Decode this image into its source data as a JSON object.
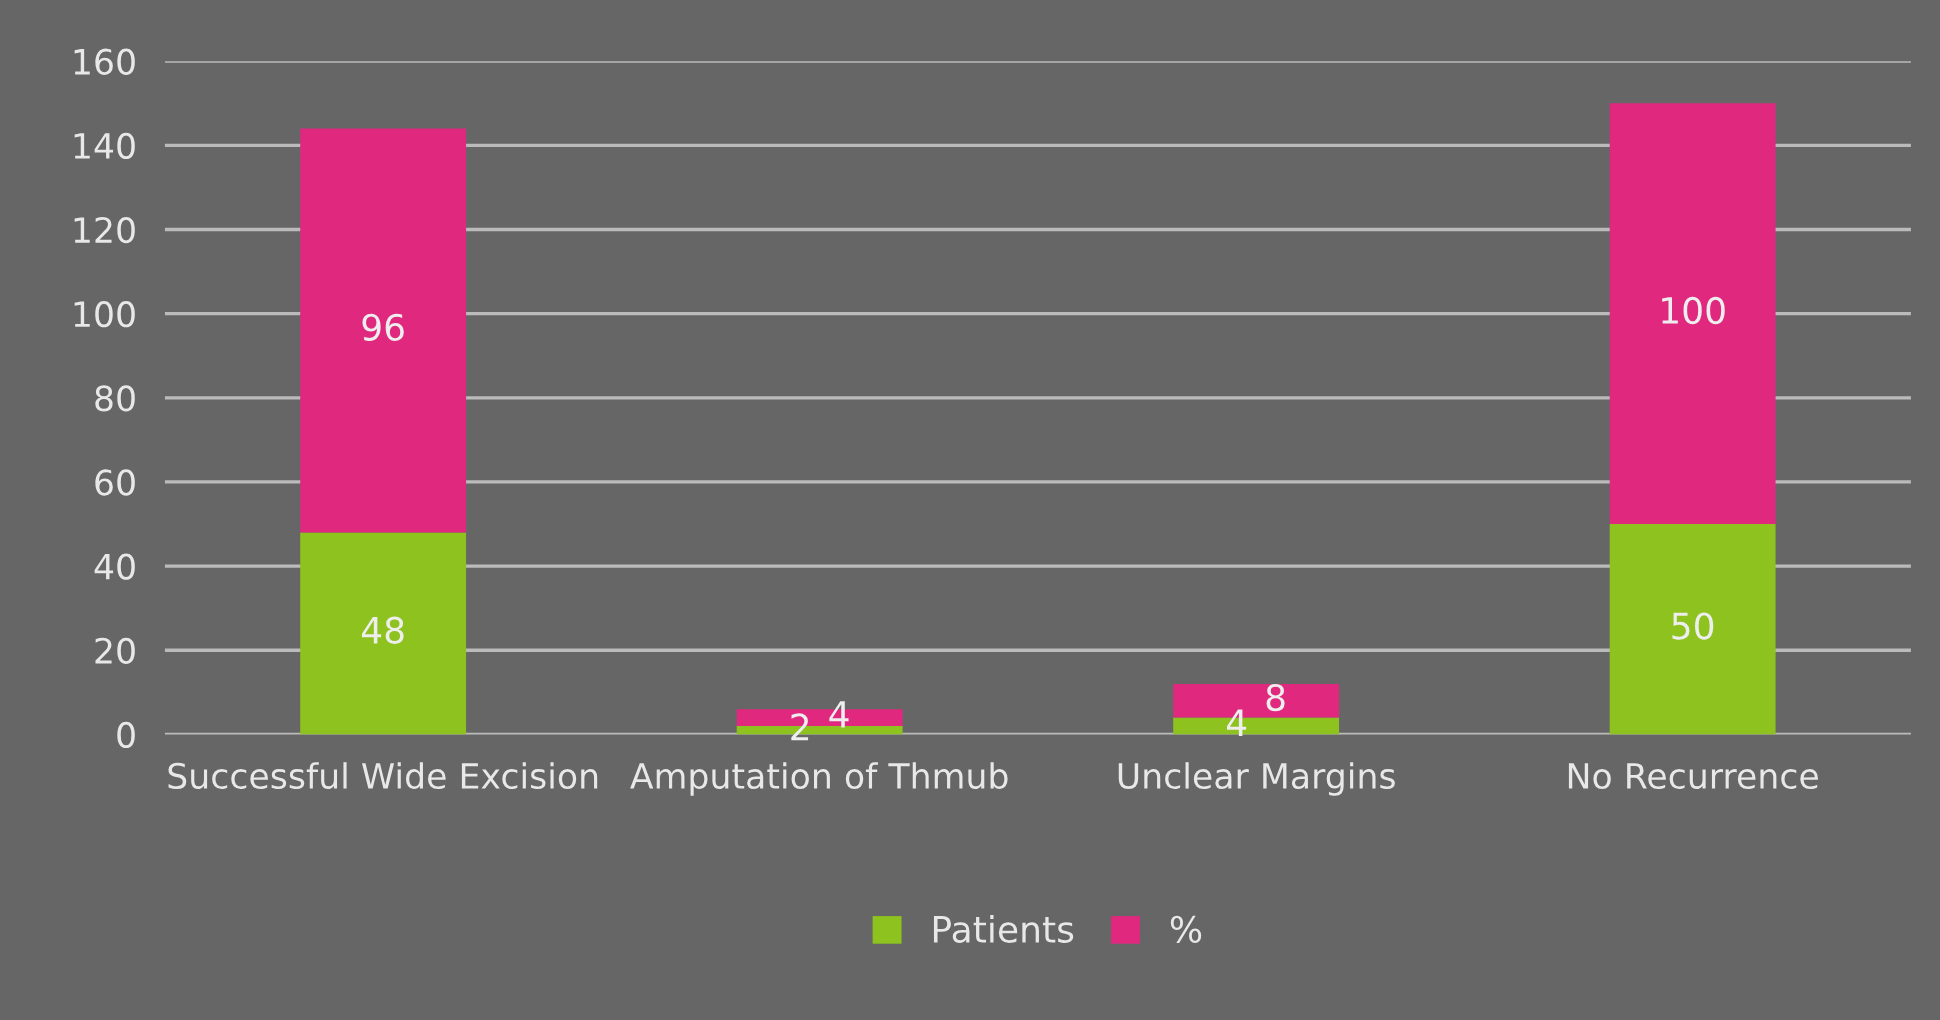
{
  "chart_data": {
    "type": "bar",
    "stacked": true,
    "categories": [
      "Successful Wide Excision",
      "Amputation of Thmub",
      "Unclear Margins",
      "No Recurrence"
    ],
    "series": [
      {
        "name": "Patients",
        "color": "#8dc21f",
        "values": [
          48,
          2,
          4,
          50
        ]
      },
      {
        "name": "%",
        "color": "#e0287f",
        "values": [
          96,
          4,
          8,
          100
        ]
      }
    ],
    "ylim": [
      0,
      160
    ],
    "yticks": [
      0,
      20,
      40,
      60,
      80,
      100,
      120,
      140,
      160
    ],
    "grid": "y",
    "legend": "bottom",
    "data_labels": true
  }
}
